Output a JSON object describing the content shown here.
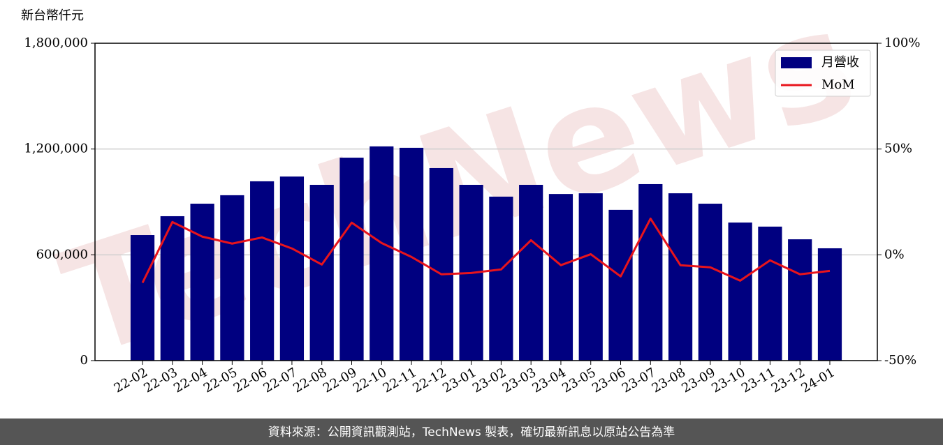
{
  "chart_data": {
    "type": "bar_line",
    "y_label": "新台幣仟元",
    "watermark": "TechNews",
    "source": "資料來源：公開資訊觀測站，TechNews 製表，確切最新訊息以原站公告為準",
    "categories": [
      "22-02",
      "22-03",
      "22-04",
      "22-05",
      "22-06",
      "22-07",
      "22-08",
      "22-09",
      "22-10",
      "22-11",
      "22-12",
      "23-01",
      "23-02",
      "23-03",
      "23-04",
      "23-05",
      "23-06",
      "23-07",
      "23-08",
      "23-09",
      "23-10",
      "23-11",
      "23-12",
      "24-01"
    ],
    "series": [
      {
        "name": "月營收",
        "type": "bar",
        "color": "#000080",
        "values": [
          712000,
          819000,
          890000,
          938000,
          1017000,
          1044000,
          997000,
          1151000,
          1215000,
          1207000,
          1092000,
          997000,
          930000,
          997000,
          945000,
          949000,
          855000,
          1001000,
          949000,
          890000,
          783000,
          760000,
          688000,
          637000
        ]
      },
      {
        "name": "MoM",
        "type": "line",
        "axis": "y2",
        "color": "#e8141c",
        "values": [
          -13.2,
          15.5,
          8.6,
          5.3,
          8.2,
          3.0,
          -4.6,
          15.2,
          5.6,
          -1.0,
          -9.2,
          -8.6,
          -6.9,
          6.9,
          -4.9,
          0.3,
          -10.2,
          17.1,
          -4.9,
          -5.9,
          -12.2,
          -2.6,
          -9.2,
          -7.6
        ]
      }
    ],
    "ylim": [
      0,
      1800000
    ],
    "yticks": [
      0,
      {
        "value": 600000,
        "label": "600,000"
      },
      {
        "value": 1200000,
        "label": "1,200,000"
      },
      {
        "value": 1800000,
        "label": "1,800,000"
      }
    ],
    "y2lim": [
      -50,
      100
    ],
    "y2ticks": [
      {
        "value": -50,
        "label": "-50%"
      },
      {
        "value": 0,
        "label": "0%"
      },
      {
        "value": 50,
        "label": "50%"
      },
      {
        "value": 100,
        "label": "100%"
      }
    ],
    "grid": true,
    "legend": "upper right"
  }
}
